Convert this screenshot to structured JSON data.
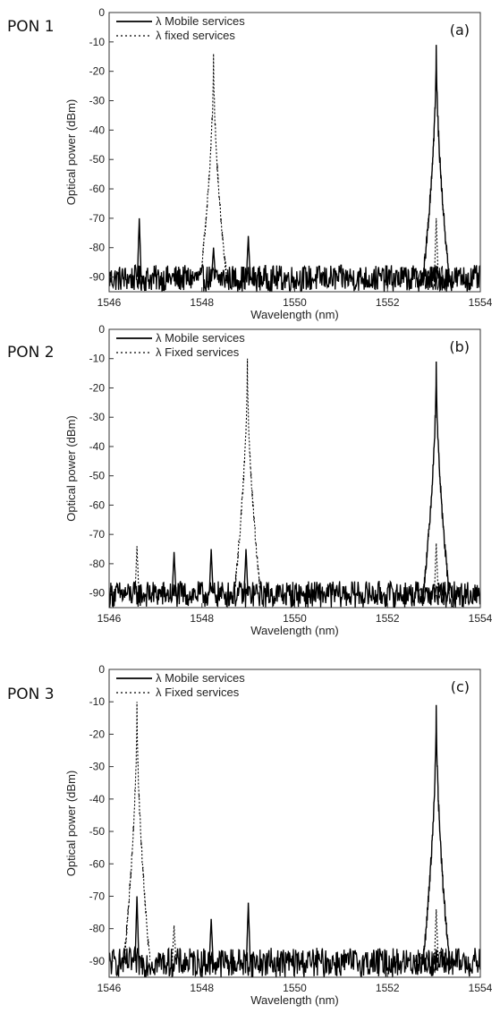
{
  "chart_data": [
    {
      "type": "line",
      "side_label": "PON 1",
      "panel_label": "(a)",
      "xlabel": "Wavelength (nm)",
      "ylabel": "Optical power (dBm)",
      "xlim": [
        1546,
        1554
      ],
      "ylim": [
        -95,
        0
      ],
      "xticks": [
        "1546",
        "1548",
        "1550",
        "1552",
        "1554"
      ],
      "yticks": [
        "0",
        "-10",
        "-20",
        "-30",
        "-40",
        "-50",
        "-60",
        "-70",
        "-80",
        "-90"
      ],
      "legend_position": "top-left",
      "series": [
        {
          "name": "λ Mobile services",
          "style": "solid",
          "noise_floor": -90,
          "noise_range": [
            1546,
            1554
          ],
          "peaks": [
            {
              "x": 1553.05,
              "y": -11
            },
            {
              "x": 1546.65,
              "y": -70
            },
            {
              "x": 1548.25,
              "y": -80
            },
            {
              "x": 1549.0,
              "y": -76
            }
          ]
        },
        {
          "name": "λ fixed services",
          "style": "dotted",
          "noise_floor": -90,
          "noise_range": [
            1552.6,
            1553.4
          ],
          "peaks": [
            {
              "x": 1548.25,
              "y": -14
            },
            {
              "x": 1553.05,
              "y": -70
            }
          ]
        }
      ]
    },
    {
      "type": "line",
      "side_label": "PON 2",
      "panel_label": "(b)",
      "xlabel": "Wavelength (nm)",
      "ylabel": "Optical power (dBm)",
      "xlim": [
        1546,
        1554
      ],
      "ylim": [
        -95,
        0
      ],
      "xticks": [
        "1546",
        "1548",
        "1550",
        "1552",
        "1554"
      ],
      "yticks": [
        "0",
        "-10",
        "-20",
        "-30",
        "-40",
        "-50",
        "-60",
        "-70",
        "-80",
        "-90"
      ],
      "legend_position": "top-left",
      "series": [
        {
          "name": "λ Mobile services",
          "style": "solid",
          "noise_floor": -90,
          "noise_range": [
            1546,
            1554
          ],
          "peaks": [
            {
              "x": 1553.05,
              "y": -11
            },
            {
              "x": 1547.4,
              "y": -76
            },
            {
              "x": 1548.2,
              "y": -75
            },
            {
              "x": 1548.95,
              "y": -75
            }
          ]
        },
        {
          "name": "λ Fixed services",
          "style": "dotted",
          "noise_floor": -90,
          "noise_range": [
            1552.6,
            1553.4
          ],
          "peaks": [
            {
              "x": 1548.98,
              "y": -10
            },
            {
              "x": 1546.6,
              "y": -74
            },
            {
              "x": 1553.05,
              "y": -73
            }
          ]
        }
      ]
    },
    {
      "type": "line",
      "side_label": "PON 3",
      "panel_label": "(c)",
      "xlabel": "Wavelength (nm)",
      "ylabel": "Optical power (dBm)",
      "xlim": [
        1546,
        1554
      ],
      "ylim": [
        -95,
        0
      ],
      "xticks": [
        "1546",
        "1548",
        "1550",
        "1552",
        "1554"
      ],
      "yticks": [
        "0",
        "-10",
        "-20",
        "-30",
        "-40",
        "-50",
        "-60",
        "-70",
        "-80",
        "-90"
      ],
      "legend_position": "top-left",
      "series": [
        {
          "name": "λ Mobile services",
          "style": "solid",
          "noise_floor": -90,
          "noise_range": [
            1546,
            1554
          ],
          "peaks": [
            {
              "x": 1553.05,
              "y": -11
            },
            {
              "x": 1546.6,
              "y": -70
            },
            {
              "x": 1548.2,
              "y": -77
            },
            {
              "x": 1549.0,
              "y": -72
            }
          ]
        },
        {
          "name": "λ Fixed services",
          "style": "dotted",
          "noise_floor": -90,
          "noise_range": [
            1552.6,
            1553.4
          ],
          "peaks": [
            {
              "x": 1546.6,
              "y": -10
            },
            {
              "x": 1547.4,
              "y": -79
            },
            {
              "x": 1553.05,
              "y": -74
            }
          ]
        }
      ]
    }
  ]
}
